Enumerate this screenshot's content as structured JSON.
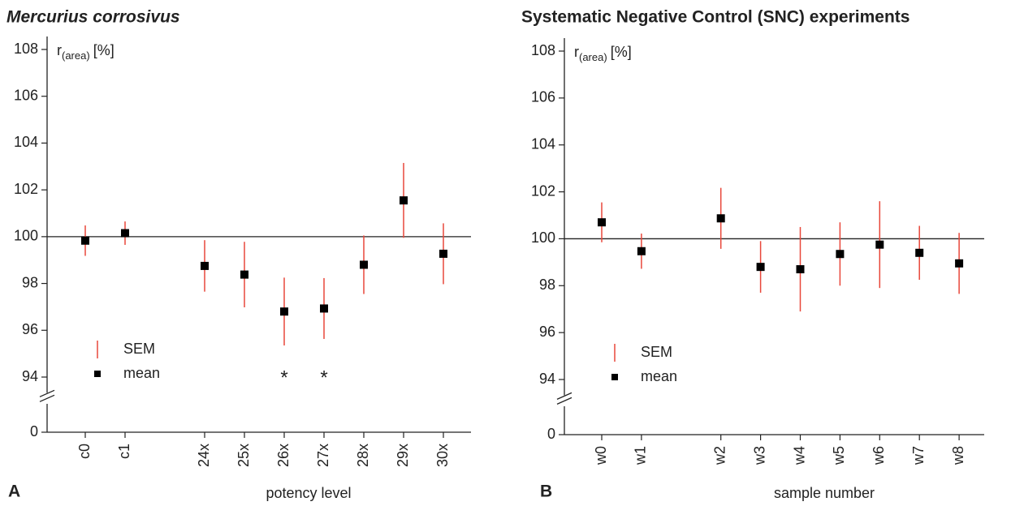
{
  "chart_data": [
    {
      "type": "errorbar",
      "title": "Mercurius corrosivus",
      "panel_label": "A",
      "y_label": "r",
      "y_label_subscript": "(area)",
      "y_label_unit": "[%]",
      "x_label": "potency level",
      "categories": [
        "c0",
        "c1",
        null,
        "24x",
        "25x",
        "26x",
        "27x",
        "28x",
        "29x",
        "30x"
      ],
      "values": [
        99.83,
        100.15,
        null,
        98.75,
        98.38,
        96.8,
        96.93,
        98.8,
        101.55,
        99.27
      ],
      "errors": [
        0.65,
        0.5,
        null,
        1.1,
        1.4,
        1.45,
        1.3,
        1.25,
        1.6,
        1.3
      ],
      "annotations": [
        null,
        null,
        null,
        null,
        null,
        "*",
        "*",
        null,
        null,
        null
      ],
      "ylim": [
        0,
        108
      ],
      "ybreak": [
        1,
        93.4
      ],
      "yticks": [
        0,
        94,
        96,
        98,
        100,
        102,
        104,
        106,
        108
      ],
      "reference_line": 100,
      "error_color": "#e8473a",
      "marker_color": "#000000",
      "legend": {
        "error": "SEM",
        "marker": "mean"
      }
    },
    {
      "type": "errorbar",
      "title": "Systematic Negative Control (SNC) experiments",
      "panel_label": "B",
      "y_label": "r",
      "y_label_subscript": "(area)",
      "y_label_unit": "[%]",
      "x_label": "sample number",
      "categories": [
        "w0",
        "w1",
        null,
        "w2",
        "w3",
        "w4",
        "w5",
        "w6",
        "w7",
        "w8"
      ],
      "values": [
        100.7,
        99.47,
        null,
        100.87,
        98.8,
        98.7,
        99.35,
        99.75,
        99.4,
        98.95
      ],
      "errors": [
        0.85,
        0.75,
        null,
        1.3,
        1.1,
        1.8,
        1.35,
        1.85,
        1.15,
        1.3
      ],
      "annotations": [
        null,
        null,
        null,
        null,
        null,
        null,
        null,
        null,
        null,
        null
      ],
      "ylim": [
        0,
        108
      ],
      "ybreak": [
        1,
        93.4
      ],
      "yticks": [
        0,
        94,
        96,
        98,
        100,
        102,
        104,
        106,
        108
      ],
      "reference_line": 100,
      "error_color": "#e8473a",
      "marker_color": "#000000",
      "legend": {
        "error": "SEM",
        "marker": "mean"
      }
    }
  ]
}
